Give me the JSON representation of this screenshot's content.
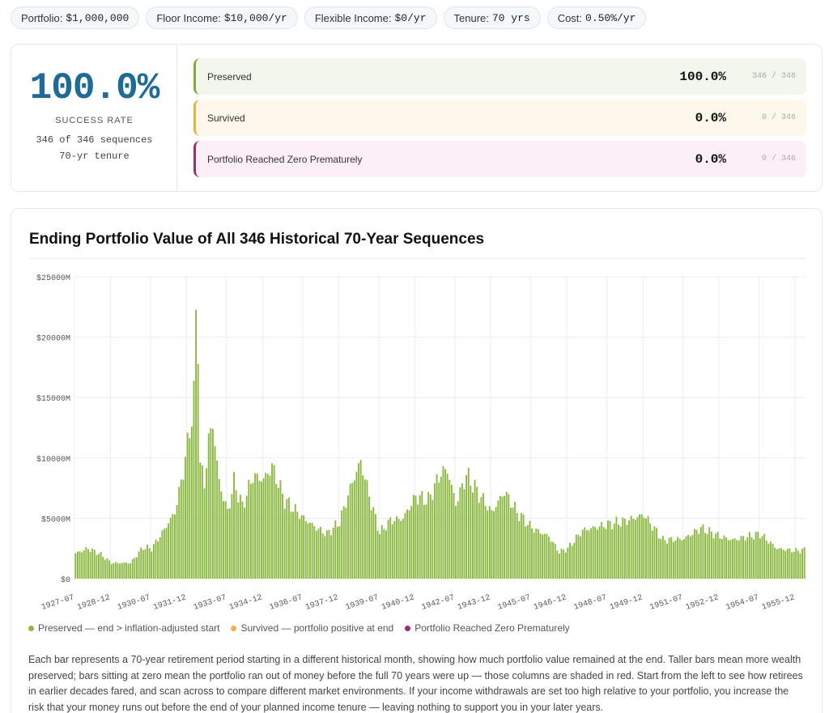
{
  "params": [
    {
      "label": "Portfolio:",
      "value": "$1,000,000"
    },
    {
      "label": "Floor Income:",
      "value": "$10,000/yr"
    },
    {
      "label": "Flexible Income:",
      "value": "$0/yr"
    },
    {
      "label": "Tenure:",
      "value": "70 yrs"
    },
    {
      "label": "Cost:",
      "value": "0.50%/yr"
    }
  ],
  "summary": {
    "rate": "100.0%",
    "rate_label": "SUCCESS RATE",
    "sequences": "346 of 346 sequences",
    "tenure": "70-yr tenure",
    "outcomes": [
      {
        "name": "Preserved",
        "pct": "100.0%",
        "count": "346 / 346"
      },
      {
        "name": "Survived",
        "pct": "0.0%",
        "count": "0 / 346"
      },
      {
        "name": "Portfolio Reached Zero Prematurely",
        "pct": "0.0%",
        "count": "0 / 346"
      }
    ]
  },
  "chart_title": "Ending Portfolio Value of All 346 Historical 70-Year Sequences",
  "legend": [
    {
      "label": "Preserved — end > inflation-adjusted start",
      "color": "#8ab83f"
    },
    {
      "label": "Survived — portfolio positive at end",
      "color": "#f5b041"
    },
    {
      "label": "Portfolio Reached Zero Prematurely",
      "color": "#a22a77"
    }
  ],
  "description": "Each bar represents a 70-year retirement period starting in a different historical month, showing how much portfolio value remained at the end. Taller bars mean more wealth preserved; bars sitting at zero mean the portfolio ran out of money before the full 70 years were up — those columns are shaded in red. Start from the left to see how retirees in earlier decades fared, and scan across to compare different market environments. If your income withdrawals are set too high relative to your portfolio, you increase the risk that your money runs out before the end of your planned income tenure — leaving nothing to support you in your later years.",
  "chart_data": {
    "type": "bar",
    "title": "Ending Portfolio Value of All 346 Historical 70-Year Sequences",
    "xlabel": "",
    "ylabel": "",
    "ylim": [
      0,
      25000
    ],
    "y_unit": "$M",
    "y_ticks": [
      "$0",
      "$5000M",
      "$10000M",
      "$15000M",
      "$20000M",
      "$25000M"
    ],
    "x_tick_labels": [
      "1927-07",
      "1928-12",
      "1930-07",
      "1931-12",
      "1933-07",
      "1934-12",
      "1936-07",
      "1937-12",
      "1939-07",
      "1940-12",
      "1942-07",
      "1943-12",
      "1945-07",
      "1946-12",
      "1948-07",
      "1949-12",
      "1951-07",
      "1952-12",
      "1954-07",
      "1955-12"
    ],
    "start_month": "1927-07",
    "bar_count": 346,
    "grid": true,
    "bar_color": "#8ab83f",
    "series": [
      {
        "name": "Preserved — end > inflation-adjusted start",
        "anchors": [
          {
            "x": "1927-07",
            "y": 2100
          },
          {
            "x": "1928-01",
            "y": 2500
          },
          {
            "x": "1928-07",
            "y": 2000
          },
          {
            "x": "1928-12",
            "y": 1300
          },
          {
            "x": "1929-09",
            "y": 1300
          },
          {
            "x": "1930-03",
            "y": 2600
          },
          {
            "x": "1930-07",
            "y": 2500
          },
          {
            "x": "1930-12",
            "y": 3800
          },
          {
            "x": "1931-06",
            "y": 5500
          },
          {
            "x": "1931-09",
            "y": 8000
          },
          {
            "x": "1931-12",
            "y": 11000
          },
          {
            "x": "1932-03",
            "y": 15000
          },
          {
            "x": "1932-04",
            "y": 21500
          },
          {
            "x": "1932-05",
            "y": 19800
          },
          {
            "x": "1932-06",
            "y": 9500
          },
          {
            "x": "1932-08",
            "y": 7800
          },
          {
            "x": "1932-10",
            "y": 11500
          },
          {
            "x": "1932-12",
            "y": 12800
          },
          {
            "x": "1933-03",
            "y": 8000
          },
          {
            "x": "1933-07",
            "y": 5500
          },
          {
            "x": "1933-10",
            "y": 8000
          },
          {
            "x": "1934-02",
            "y": 6000
          },
          {
            "x": "1934-07",
            "y": 8500
          },
          {
            "x": "1934-12",
            "y": 8200
          },
          {
            "x": "1935-04",
            "y": 9300
          },
          {
            "x": "1935-10",
            "y": 6500
          },
          {
            "x": "1936-07",
            "y": 5000
          },
          {
            "x": "1937-01",
            "y": 4200
          },
          {
            "x": "1937-06",
            "y": 3700
          },
          {
            "x": "1937-12",
            "y": 4700
          },
          {
            "x": "1938-06",
            "y": 8000
          },
          {
            "x": "1938-10",
            "y": 9700
          },
          {
            "x": "1939-03",
            "y": 6200
          },
          {
            "x": "1939-07",
            "y": 3800
          },
          {
            "x": "1939-12",
            "y": 4800
          },
          {
            "x": "1940-06",
            "y": 5000
          },
          {
            "x": "1940-12",
            "y": 6800
          },
          {
            "x": "1941-06",
            "y": 6500
          },
          {
            "x": "1941-12",
            "y": 8800
          },
          {
            "x": "1942-03",
            "y": 9000
          },
          {
            "x": "1942-07",
            "y": 6200
          },
          {
            "x": "1942-12",
            "y": 8600
          },
          {
            "x": "1943-06",
            "y": 7000
          },
          {
            "x": "1943-12",
            "y": 5500
          },
          {
            "x": "1944-06",
            "y": 7200
          },
          {
            "x": "1944-12",
            "y": 5500
          },
          {
            "x": "1945-07",
            "y": 4200
          },
          {
            "x": "1946-03",
            "y": 3500
          },
          {
            "x": "1946-08",
            "y": 2200
          },
          {
            "x": "1946-12",
            "y": 2500
          },
          {
            "x": "1947-07",
            "y": 4000
          },
          {
            "x": "1948-07",
            "y": 4500
          },
          {
            "x": "1949-04",
            "y": 4800
          },
          {
            "x": "1949-12",
            "y": 5300
          },
          {
            "x": "1950-09",
            "y": 3200
          },
          {
            "x": "1951-07",
            "y": 3300
          },
          {
            "x": "1952-03",
            "y": 4200
          },
          {
            "x": "1952-12",
            "y": 3500
          },
          {
            "x": "1953-06",
            "y": 3200
          },
          {
            "x": "1954-07",
            "y": 3700
          },
          {
            "x": "1955-03",
            "y": 2500
          },
          {
            "x": "1955-12",
            "y": 2300
          },
          {
            "x": "1956-04",
            "y": 2400
          }
        ]
      }
    ]
  }
}
